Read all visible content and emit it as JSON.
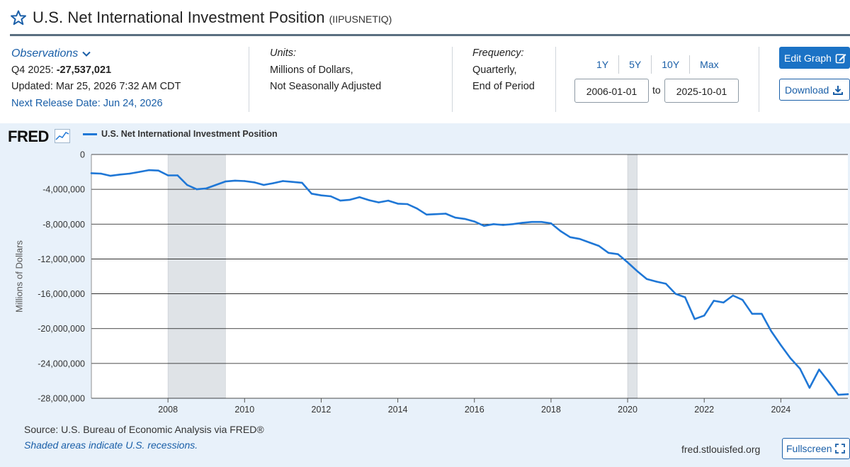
{
  "header": {
    "title": "U.S. Net International Investment Position",
    "series_id": "(IIPUSNETIQ)"
  },
  "observations": {
    "heading": "Observations",
    "latest_label": "Q4 2025:",
    "latest_value": "-27,537,021",
    "updated": "Updated: Mar 25, 2026 7:32 AM CDT",
    "next_release": "Next Release Date: Jun 24, 2026"
  },
  "units": {
    "heading": "Units:",
    "line1": "Millions of Dollars,",
    "line2": "Not Seasonally Adjusted"
  },
  "frequency": {
    "heading": "Frequency:",
    "line1": "Quarterly,",
    "line2": "End of Period"
  },
  "range": {
    "buttons": [
      "1Y",
      "5Y",
      "10Y",
      "Max"
    ],
    "start": "2006-01-01",
    "to_label": "to",
    "end": "2025-10-01"
  },
  "actions": {
    "edit_graph": "Edit Graph",
    "download": "Download",
    "fullscreen": "Fullscreen"
  },
  "footer": {
    "source": "Source: U.S. Bureau of Economic Analysis via FRED®",
    "shaded_note": "Shaded areas indicate U.S. recessions.",
    "site": "fred.stlouisfed.org"
  },
  "brand": {
    "logo": "FRED"
  },
  "colors": {
    "accent": "#1b72c5",
    "line": "#1f77d6",
    "recession": "#dfe3e7",
    "panel": "#e8f1fa"
  },
  "chart_data": {
    "type": "line",
    "title": "U.S. Net International Investment Position",
    "xlabel": "",
    "ylabel": "Millions of Dollars",
    "legend": "top-left",
    "grid": true,
    "xlim": [
      2006.0,
      2025.75
    ],
    "ylim": [
      -28000000,
      0
    ],
    "yticks": [
      0,
      -4000000,
      -8000000,
      -12000000,
      -16000000,
      -20000000,
      -24000000,
      -28000000
    ],
    "ytick_labels": [
      "0",
      "-4,000,000",
      "-8,000,000",
      "-12,000,000",
      "-16,000,000",
      "-20,000,000",
      "-24,000,000",
      "-28,000,000"
    ],
    "xticks": [
      2008,
      2010,
      2012,
      2014,
      2016,
      2018,
      2020,
      2022,
      2024
    ],
    "xtick_labels": [
      "2008",
      "2010",
      "2012",
      "2014",
      "2016",
      "2018",
      "2020",
      "2022",
      "2024"
    ],
    "recessions": [
      [
        2008.0,
        2009.5
      ],
      [
        2020.0,
        2020.25
      ]
    ],
    "series": [
      {
        "name": "U.S. Net International Investment Position",
        "x": [
          2006.0,
          2006.25,
          2006.5,
          2006.75,
          2007.0,
          2007.25,
          2007.5,
          2007.75,
          2008.0,
          2008.25,
          2008.5,
          2008.75,
          2009.0,
          2009.25,
          2009.5,
          2009.75,
          2010.0,
          2010.25,
          2010.5,
          2010.75,
          2011.0,
          2011.25,
          2011.5,
          2011.75,
          2012.0,
          2012.25,
          2012.5,
          2012.75,
          2013.0,
          2013.25,
          2013.5,
          2013.75,
          2014.0,
          2014.25,
          2014.5,
          2014.75,
          2015.0,
          2015.25,
          2015.5,
          2015.75,
          2016.0,
          2016.25,
          2016.5,
          2016.75,
          2017.0,
          2017.25,
          2017.5,
          2017.75,
          2018.0,
          2018.25,
          2018.5,
          2018.75,
          2019.0,
          2019.25,
          2019.5,
          2019.75,
          2020.0,
          2020.25,
          2020.5,
          2020.75,
          2021.0,
          2021.25,
          2021.5,
          2021.75,
          2022.0,
          2022.25,
          2022.5,
          2022.75,
          2023.0,
          2023.25,
          2023.5,
          2023.75,
          2024.0,
          2024.25,
          2024.5,
          2024.75,
          2025.0,
          2025.25,
          2025.5,
          2025.75
        ],
        "values": [
          -2150000,
          -2200000,
          -2450000,
          -2300000,
          -2200000,
          -2000000,
          -1800000,
          -1850000,
          -2400000,
          -2400000,
          -3500000,
          -4000000,
          -3900000,
          -3500000,
          -3100000,
          -3000000,
          -3050000,
          -3200000,
          -3500000,
          -3300000,
          -3050000,
          -3150000,
          -3250000,
          -4500000,
          -4700000,
          -4800000,
          -5300000,
          -5200000,
          -4900000,
          -5250000,
          -5500000,
          -5300000,
          -5650000,
          -5700000,
          -6200000,
          -6900000,
          -6850000,
          -6800000,
          -7250000,
          -7400000,
          -7700000,
          -8200000,
          -8000000,
          -8100000,
          -8000000,
          -7850000,
          -7750000,
          -7750000,
          -7900000,
          -8800000,
          -9500000,
          -9700000,
          -10100000,
          -10500000,
          -11300000,
          -11450000,
          -12400000,
          -13400000,
          -14300000,
          -14600000,
          -14850000,
          -16000000,
          -16400000,
          -18900000,
          -18500000,
          -16800000,
          -17000000,
          -16200000,
          -16700000,
          -18300000,
          -18300000,
          -20300000,
          -21900000,
          -23400000,
          -24600000,
          -26800000,
          -24700000,
          -26100000,
          -27600000,
          -27537021
        ]
      }
    ]
  }
}
